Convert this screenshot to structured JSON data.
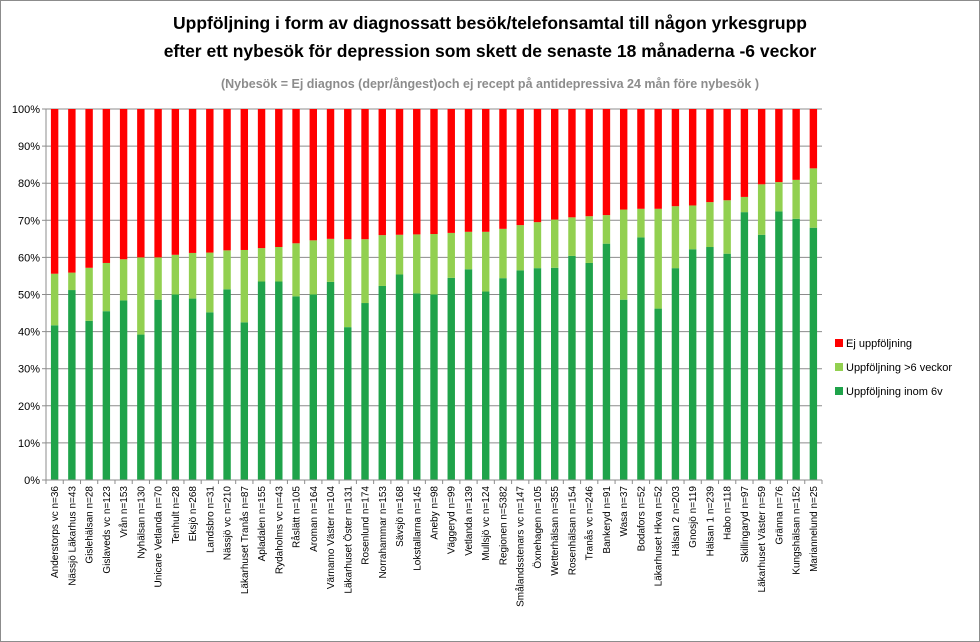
{
  "chart_data": {
    "type": "bar",
    "stacked": true,
    "title": "Uppföljning i form av diagnossatt  besök/telefonsamtal   till någon yrkesgrupp",
    "subtitle": "efter ett nybesök för depression som skett de senaste 18 månaderna -6 veckor",
    "note": "(Nybesök = Ej diagnos (depr/ångest)och  ej recept på antidepressiva  24 mån före nybesök )",
    "ylim": [
      0,
      100
    ],
    "yticks": [
      "0%",
      "10%",
      "20%",
      "30%",
      "40%",
      "50%",
      "60%",
      "70%",
      "80%",
      "90%",
      "100%"
    ],
    "categories": [
      "Anderstorps vc n=36",
      "Nässjö Läkarhus n=43",
      "Gislehälsan n=28",
      "Gislaveds vc n=123",
      "Vrån n=153",
      "Nyhälsan n=130",
      "Unicare Vetlanda n=70",
      "Tenhult n=28",
      "Eksjö n=268",
      "Landsbro n=31",
      "Nässjö vc n=210",
      "Läkarhuset Tranås n=87",
      "Apladalen n=155",
      "Rydaholms vc n=43",
      "Råslätt n=105",
      "Aroman n=164",
      "Värnamo Väster n=104",
      "Läkarhuset Öster n=131",
      "Rosenlund n=174",
      "Norrahammar n=153",
      "Sävsjö n=168",
      "Lokstallarna n=145",
      "Aneby n=98",
      "Väggeryd n=99",
      "Vetlanda n=139",
      "Mullsjö vc n=124",
      "Regionen n=5382",
      "Smålandsstenars vc n=147",
      "Öxnehagen n=105",
      "Wetterhälsan n=355",
      "Rosenhälsan n=154",
      "Tranås vc n=246",
      "Bankeryd n=91",
      "Wasa n=37",
      "Bodafors n=52",
      "Läkarhuset Hkva n=52",
      "Hälsan 2 n=203",
      "Gnosjö n=119",
      "Hälsan 1 n=239",
      "Habo n=118",
      "Skillingaryd n=97",
      "Läkarhuset Väster n=59",
      "Gränna n=76",
      "Kungshälsan n=152",
      "Mariannelund n=25"
    ],
    "series": [
      {
        "name": "Uppföljning inom 6v",
        "color": "#1fa34a",
        "values": [
          41.7,
          51.2,
          42.9,
          45.5,
          48.4,
          39.2,
          48.6,
          50.0,
          48.9,
          45.2,
          51.4,
          42.5,
          53.5,
          53.5,
          49.5,
          50.0,
          53.4,
          41.2,
          47.7,
          52.3,
          55.4,
          50.3,
          50.0,
          54.5,
          56.8,
          50.8,
          54.4,
          56.5,
          57.1,
          57.2,
          60.4,
          58.5,
          63.7,
          48.6,
          65.4,
          46.2,
          57.1,
          62.2,
          62.8,
          61.0,
          72.2,
          66.1,
          72.4,
          70.4,
          68.0
        ]
      },
      {
        "name": "Uppföljning >6 veckor",
        "color": "#92d050",
        "values": [
          13.9,
          4.7,
          14.3,
          13.0,
          11.1,
          20.8,
          11.4,
          10.7,
          12.3,
          16.1,
          10.5,
          19.5,
          9.0,
          9.3,
          14.3,
          14.6,
          11.6,
          23.7,
          17.2,
          13.7,
          10.7,
          15.9,
          16.3,
          12.1,
          10.1,
          16.1,
          13.3,
          12.2,
          12.4,
          13.0,
          10.4,
          12.6,
          7.7,
          24.3,
          7.7,
          26.9,
          16.7,
          11.8,
          12.1,
          14.4,
          4.1,
          13.6,
          7.9,
          10.5,
          16.0
        ]
      },
      {
        "name": "Ej uppföljning",
        "color": "#ff0000",
        "values": [
          44.4,
          44.1,
          42.8,
          41.5,
          40.5,
          40.0,
          40.0,
          39.3,
          38.8,
          38.7,
          38.1,
          38.0,
          37.5,
          37.2,
          36.2,
          35.4,
          35.0,
          35.1,
          35.1,
          34.0,
          33.9,
          33.8,
          33.7,
          33.4,
          33.1,
          33.1,
          32.3,
          31.3,
          30.5,
          29.8,
          29.2,
          28.9,
          28.6,
          27.1,
          26.9,
          26.9,
          26.2,
          26.0,
          25.1,
          24.6,
          23.7,
          20.3,
          19.7,
          19.1,
          16.0
        ]
      }
    ],
    "legend": {
      "placement": "right",
      "entries": [
        "Ej uppföljning",
        "Uppföljning >6 veckor",
        "Uppföljning inom 6v"
      ]
    }
  }
}
